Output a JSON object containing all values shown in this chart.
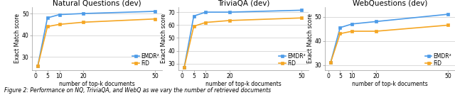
{
  "x_plot": [
    1,
    5,
    10,
    20,
    50
  ],
  "x_ticks": [
    0,
    5,
    10,
    20,
    50
  ],
  "plots": [
    {
      "title": "Natural Questions (dev)",
      "emdr2": [
        26.0,
        48.0,
        49.5,
        50.0,
        51.0
      ],
      "fid": [
        26.0,
        44.0,
        45.0,
        46.0,
        47.5
      ],
      "ylim": [
        24,
        53
      ],
      "yticks": [
        30,
        40,
        50
      ],
      "ylabel": "Exact Match score"
    },
    {
      "title": "TriviaQA (dev)",
      "emdr2": [
        27.0,
        67.0,
        70.0,
        70.0,
        71.5
      ],
      "fid": [
        27.0,
        59.0,
        62.0,
        63.5,
        65.5
      ],
      "ylim": [
        25,
        74
      ],
      "yticks": [
        30,
        40,
        50,
        60,
        70
      ],
      "ylabel": "Exact Match score"
    },
    {
      "title": "WebQuestions (dev)",
      "emdr2": [
        31.0,
        45.5,
        47.0,
        48.0,
        51.0
      ],
      "fid": [
        31.0,
        43.0,
        44.0,
        44.0,
        46.5
      ],
      "ylim": [
        28,
        54
      ],
      "yticks": [
        30,
        40,
        50
      ],
      "ylabel": "Exact Match score"
    }
  ],
  "xlabel": "number of top-k documents",
  "color_emdr2": "#4C9BE8",
  "color_fid": "#F5A623",
  "legend_labels": [
    "EMDR²",
    "FiD"
  ],
  "marker": "s",
  "markersize": 2.8,
  "linewidth": 1.2,
  "grid_color": "#cccccc",
  "font_size_title": 7.5,
  "font_size_axis": 5.5,
  "font_size_legend": 5.5,
  "font_size_ticks": 5.5,
  "caption": "Figure 2: Performance on NQ, TriviaQA, and WebQ as we vary the number of retrieved documents"
}
